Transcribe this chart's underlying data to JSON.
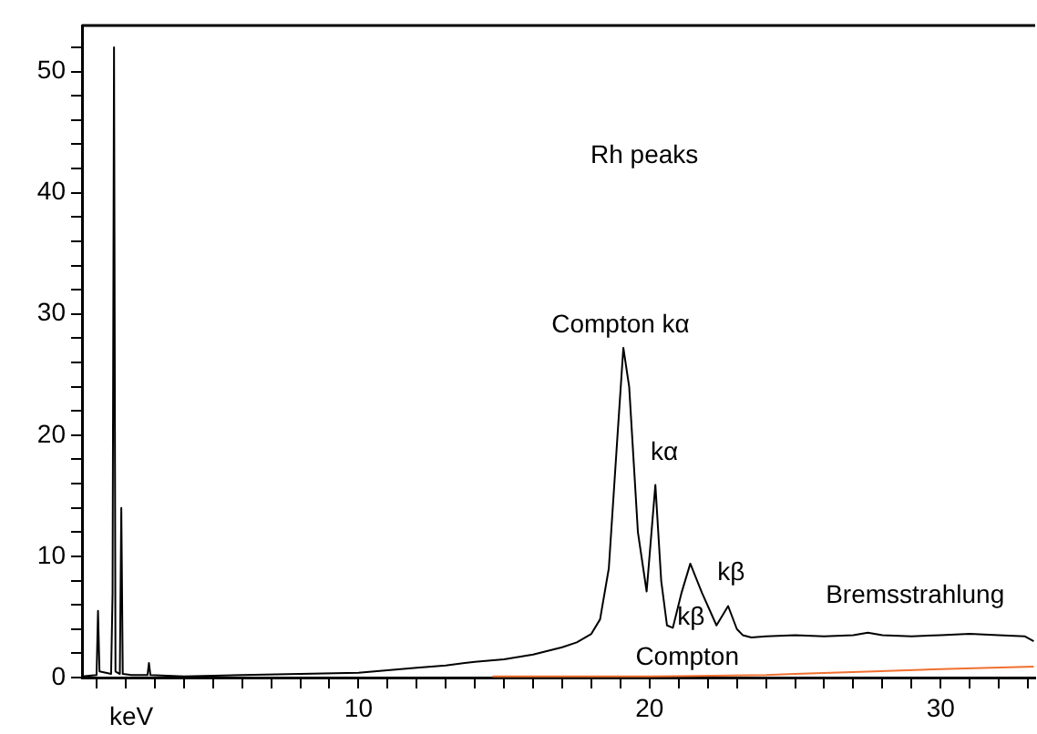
{
  "chart_data": {
    "type": "line",
    "xlabel": "keV",
    "grid": false,
    "legend": false,
    "marker": "none",
    "line_style": "solid",
    "xlim": [
      0.5,
      33.25
    ],
    "ylim": [
      0,
      53.8
    ],
    "xticks": [
      {
        "value": 1,
        "label": null
      },
      {
        "value": 2,
        "label": null
      },
      {
        "value": 3,
        "label": null
      },
      {
        "value": 4,
        "label": null
      },
      {
        "value": 5,
        "label": null
      },
      {
        "value": 6,
        "label": null
      },
      {
        "value": 7,
        "label": null
      },
      {
        "value": 8,
        "label": null
      },
      {
        "value": 9,
        "label": null
      },
      10,
      {
        "value": 11,
        "label": null
      },
      {
        "value": 12,
        "label": null
      },
      {
        "value": 13,
        "label": null
      },
      {
        "value": 14,
        "label": null
      },
      {
        "value": 15,
        "label": null
      },
      {
        "value": 16,
        "label": null
      },
      {
        "value": 17,
        "label": null
      },
      {
        "value": 18,
        "label": null
      },
      {
        "value": 19,
        "label": null
      },
      20,
      {
        "value": 21,
        "label": null
      },
      {
        "value": 22,
        "label": null
      },
      {
        "value": 23,
        "label": null
      },
      {
        "value": 24,
        "label": null
      },
      {
        "value": 25,
        "label": null
      },
      {
        "value": 26,
        "label": null
      },
      {
        "value": 27,
        "label": null
      },
      {
        "value": 28,
        "label": null
      },
      {
        "value": 29,
        "label": null
      },
      30,
      {
        "value": 31,
        "label": null
      },
      {
        "value": 32,
        "label": null
      },
      {
        "value": 33,
        "label": null
      }
    ],
    "yticks": [
      0,
      {
        "value": 2,
        "label": null
      },
      {
        "value": 4,
        "label": null
      },
      {
        "value": 6,
        "label": null
      },
      {
        "value": 8,
        "label": null
      },
      10,
      {
        "value": 12,
        "label": null
      },
      {
        "value": 14,
        "label": null
      },
      {
        "value": 16,
        "label": null
      },
      {
        "value": 18,
        "label": null
      },
      20,
      {
        "value": 22,
        "label": null
      },
      {
        "value": 24,
        "label": null
      },
      {
        "value": 26,
        "label": null
      },
      {
        "value": 28,
        "label": null
      },
      30,
      {
        "value": 32,
        "label": null
      },
      {
        "value": 34,
        "label": null
      },
      {
        "value": 36,
        "label": null
      },
      {
        "value": 38,
        "label": null
      },
      40,
      {
        "value": 42,
        "label": null
      },
      {
        "value": 44,
        "label": null
      },
      {
        "value": 46,
        "label": null
      },
      {
        "value": 48,
        "label": null
      },
      50,
      {
        "value": 52,
        "label": null
      }
    ],
    "series": [
      {
        "color": "#000000",
        "x": [
          0.5,
          1.0,
          1.05,
          1.1,
          1.5,
          1.55,
          1.6,
          1.65,
          1.8,
          1.85,
          1.9,
          2.2,
          2.75,
          2.8,
          2.85,
          4,
          6,
          8,
          10,
          11,
          12,
          13,
          14,
          15,
          16,
          17,
          17.5,
          18,
          18.3,
          18.6,
          18.9,
          19.1,
          19.3,
          19.6,
          19.9,
          20.2,
          20.4,
          20.6,
          20.8,
          21.1,
          21.4,
          21.8,
          22.3,
          22.7,
          23.0,
          23.2,
          23.5,
          24,
          25,
          26,
          27,
          27.5,
          28,
          29,
          30,
          31,
          32,
          32.9,
          33.2
        ],
        "values": [
          0.1,
          0.2,
          5.5,
          0.5,
          0.3,
          7,
          52,
          0.5,
          0.3,
          14,
          0.3,
          0.2,
          0.2,
          1.2,
          0.2,
          0.1,
          0.2,
          0.3,
          0.4,
          0.6,
          0.8,
          1.0,
          1.3,
          1.5,
          1.9,
          2.5,
          2.9,
          3.6,
          4.8,
          9,
          20,
          27.2,
          24,
          12,
          7.1,
          15.9,
          8,
          4.3,
          4.1,
          7,
          9.4,
          7,
          4.3,
          5.9,
          4,
          3.5,
          3.3,
          3.4,
          3.5,
          3.4,
          3.5,
          3.7,
          3.5,
          3.4,
          3.5,
          3.6,
          3.5,
          3.4,
          3.0
        ]
      },
      {
        "color": "#f07030",
        "x": [
          14.6,
          20,
          24,
          25,
          27.7,
          30,
          33.2
        ],
        "values": [
          0.1,
          0.1,
          0.2,
          0.3,
          0.5,
          0.7,
          0.9
        ]
      }
    ],
    "annotations": [
      "Rh peaks",
      "Compton kα",
      "kα",
      "kβ",
      "kβ",
      "Bremsstrahlung",
      "Compton"
    ]
  }
}
